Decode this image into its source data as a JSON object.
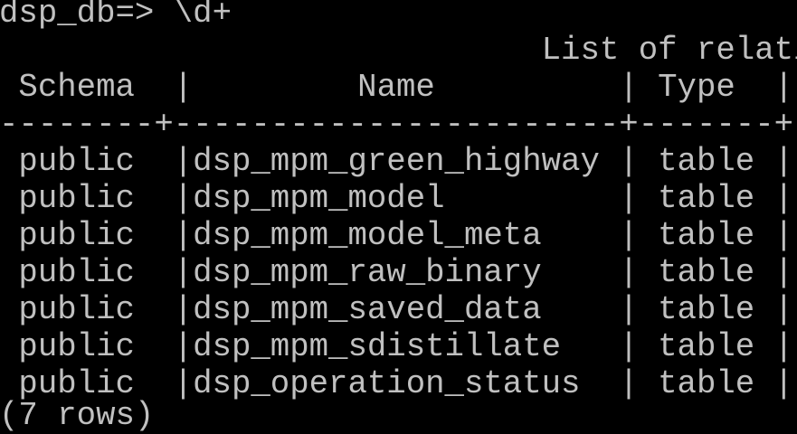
{
  "prompt": "dsp_db=> \\d+",
  "title": "List of relati",
  "headers": {
    "schema": "Schema",
    "name": "Name",
    "type": "Type"
  },
  "separator_line": "--------+-----------------------+-------+-",
  "rows": [
    {
      "schema": "public",
      "name": "dsp_mpm_green_highway",
      "type": "table"
    },
    {
      "schema": "public",
      "name": "dsp_mpm_model",
      "type": "table"
    },
    {
      "schema": "public",
      "name": "dsp_mpm_model_meta",
      "type": "table"
    },
    {
      "schema": "public",
      "name": "dsp_mpm_raw_binary",
      "type": "table"
    },
    {
      "schema": "public",
      "name": "dsp_mpm_saved_data",
      "type": "table"
    },
    {
      "schema": "public",
      "name": "dsp_mpm_sdistillate",
      "type": "table"
    },
    {
      "schema": "public",
      "name": "dsp_operation_status",
      "type": "table"
    }
  ],
  "footer": "(7 rows)",
  "colors": {
    "background": "#000000",
    "text": "#c0c0c0"
  }
}
